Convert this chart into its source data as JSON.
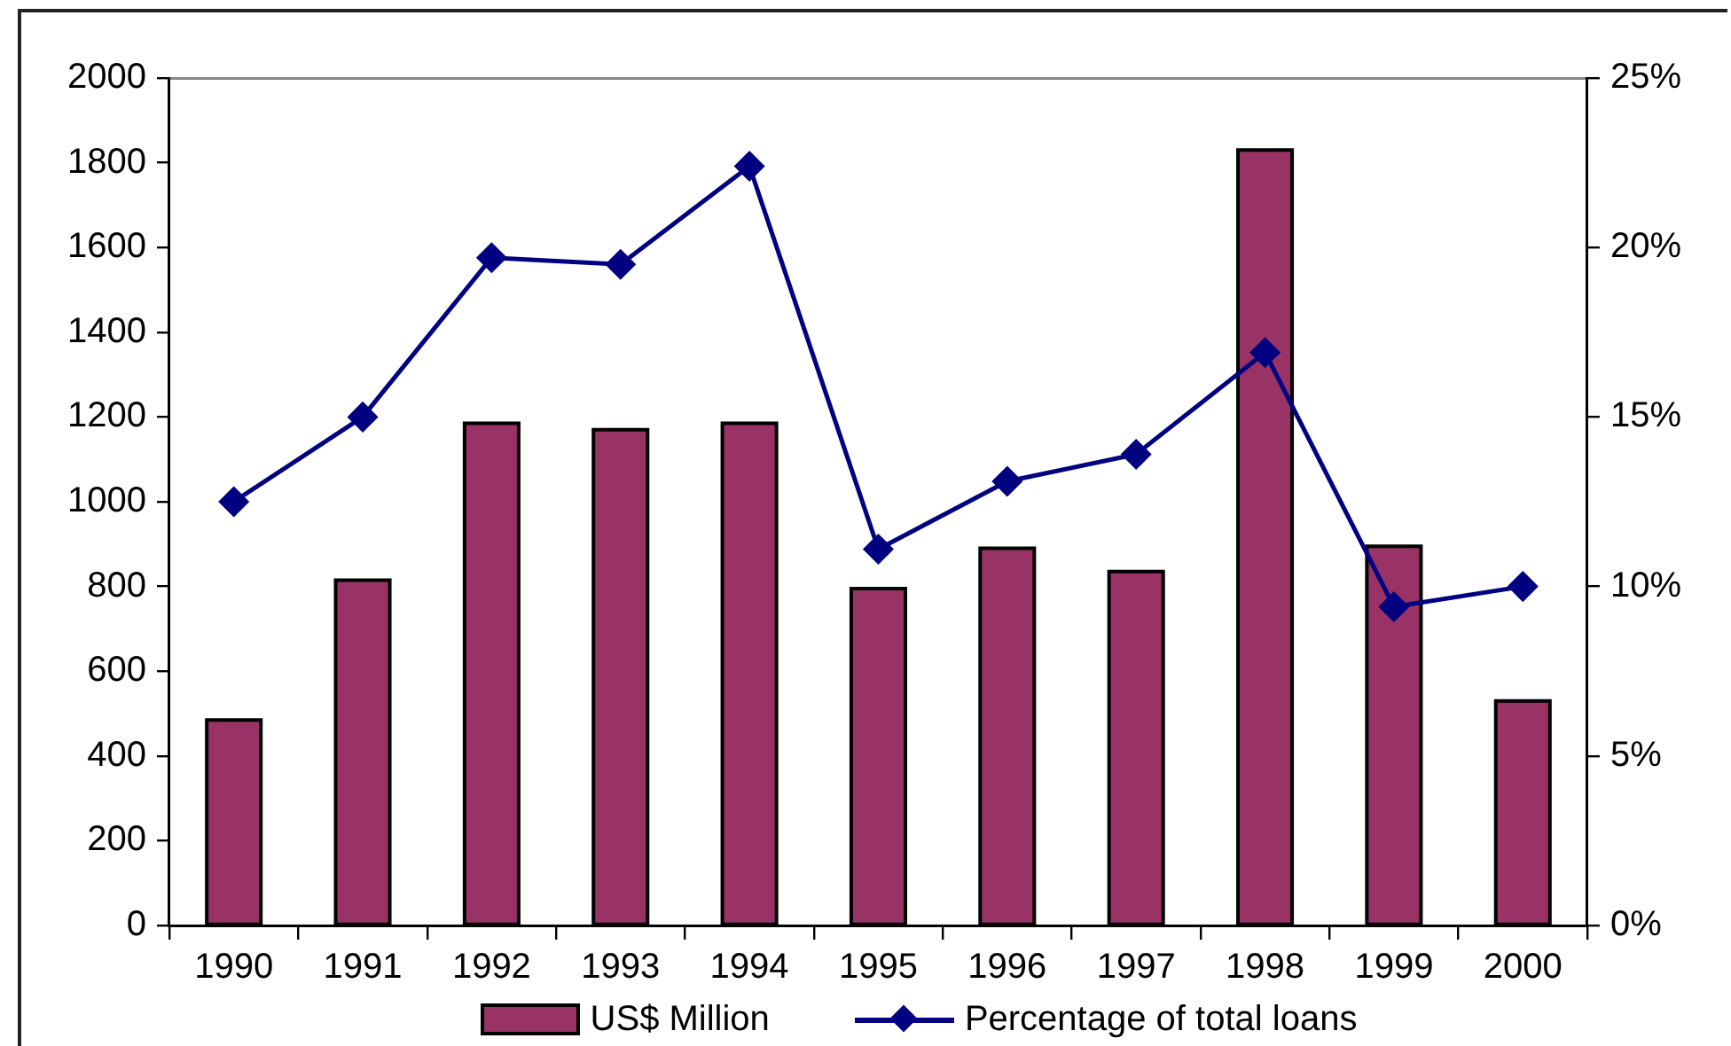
{
  "chart_data": {
    "type": "bar",
    "categories": [
      "1990",
      "1991",
      "1992",
      "1993",
      "1994",
      "1995",
      "1996",
      "1997",
      "1998",
      "1999",
      "2000"
    ],
    "series": [
      {
        "name": "US$ Million",
        "color": "#993366",
        "values": [
          485,
          815,
          1185,
          1170,
          1185,
          795,
          890,
          835,
          1830,
          895,
          530
        ]
      },
      {
        "name": "Percentage of total loans",
        "type": "line",
        "axis": "y2",
        "color": "#000080",
        "marker": "diamond",
        "values": [
          12.5,
          15.0,
          19.7,
          19.5,
          22.4,
          11.1,
          13.1,
          13.9,
          16.9,
          9.4,
          10.0
        ]
      }
    ],
    "ylim": [
      0,
      2000
    ],
    "yticks": [
      0,
      200,
      400,
      600,
      800,
      1000,
      1200,
      1400,
      1600,
      1800,
      2000
    ],
    "y2lim": [
      0,
      25
    ],
    "y2ticks": [
      {
        "value": 0,
        "label": "0%"
      },
      {
        "value": 5,
        "label": "5%"
      },
      {
        "value": 10,
        "label": "10%"
      },
      {
        "value": 15,
        "label": "15%"
      },
      {
        "value": 20,
        "label": "20%"
      },
      {
        "value": 25,
        "label": "25%"
      }
    ],
    "grid": false,
    "legend": "bottom"
  }
}
